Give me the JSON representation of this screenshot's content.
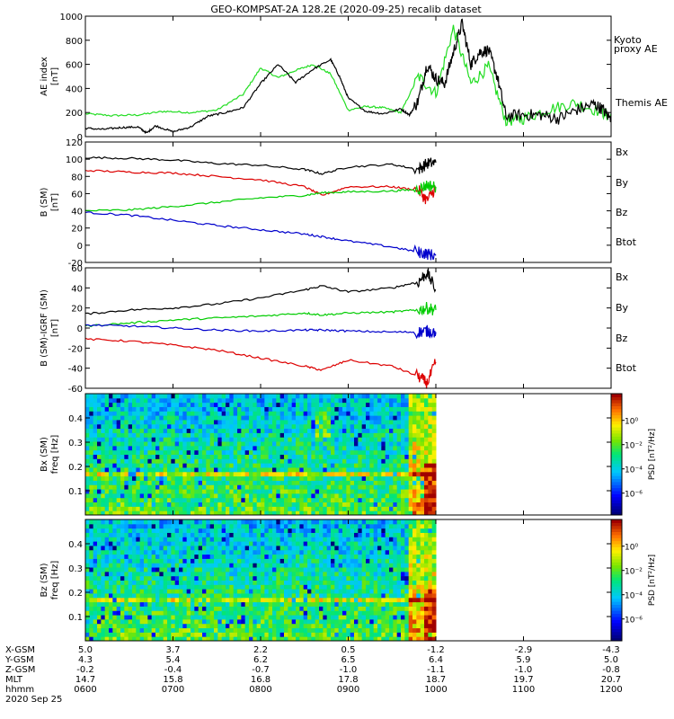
{
  "title": "GEO-KOMPSAT-2A 128.2E (2020-09-25) recalib dataset",
  "colors": {
    "bx": "#0000cc",
    "by": "#00cc00",
    "bz": "#dd0000",
    "btot": "#000000",
    "kyoto": "#22dd22",
    "themis": "#000000"
  },
  "chart_data": [
    {
      "type": "line",
      "name": "ae",
      "ylabel_lines": [
        "AE index",
        "[nT]"
      ],
      "ylim": [
        0,
        1000
      ],
      "yticks": [
        "0",
        "200",
        "400",
        "600",
        "800",
        "1000"
      ],
      "x_hours": [
        6,
        12
      ],
      "legend": [
        {
          "text": "Kyoto",
          "color": "#22dd22"
        },
        {
          "text": "proxy AE",
          "color": "#22dd22"
        },
        {
          "text": "Themis AE",
          "color": "#000000"
        }
      ],
      "series": [
        {
          "name": "Kyoto proxy AE",
          "color": "#22dd22",
          "x": [
            6.0,
            6.3,
            6.6,
            6.9,
            7.2,
            7.5,
            7.8,
            8.0,
            8.2,
            8.4,
            8.6,
            8.8,
            9.0,
            9.2,
            9.4,
            9.6,
            9.8,
            10.0,
            10.2,
            10.4,
            10.6,
            10.8,
            11.0,
            11.3,
            11.6,
            11.9,
            12.0
          ],
          "y": [
            190,
            175,
            180,
            210,
            200,
            220,
            350,
            570,
            490,
            550,
            600,
            520,
            220,
            250,
            240,
            200,
            500,
            360,
            900,
            440,
            580,
            130,
            150,
            230,
            280,
            200,
            160
          ]
        },
        {
          "name": "Themis AE",
          "color": "#000000",
          "x": [
            6.0,
            6.2,
            6.4,
            6.6,
            6.7,
            6.8,
            7.0,
            7.2,
            7.4,
            7.6,
            7.8,
            8.0,
            8.2,
            8.4,
            8.6,
            8.8,
            8.9,
            9.0,
            9.2,
            9.4,
            9.6,
            9.7,
            9.8,
            9.9,
            10.0,
            10.1,
            10.2,
            10.3,
            10.4,
            10.5,
            10.6,
            10.7,
            10.8,
            11.0,
            11.2,
            11.4,
            11.6,
            11.8,
            11.9,
            12.0
          ],
          "y": [
            70,
            60,
            75,
            80,
            30,
            90,
            40,
            80,
            170,
            200,
            240,
            440,
            600,
            450,
            560,
            640,
            500,
            320,
            210,
            190,
            230,
            180,
            300,
            600,
            480,
            440,
            700,
            940,
            600,
            700,
            720,
            500,
            170,
            180,
            180,
            150,
            220,
            270,
            230,
            140
          ]
        }
      ]
    },
    {
      "type": "line",
      "name": "b-sm",
      "ylabel_lines": [
        "B (SM)",
        "[nT]"
      ],
      "ylim": [
        -20,
        120
      ],
      "yticks": [
        "-20",
        "0",
        "20",
        "40",
        "60",
        "80",
        "100",
        "120"
      ],
      "x_hours": [
        6,
        12
      ],
      "legend": [
        {
          "text": "Bx",
          "color": "#0000cc"
        },
        {
          "text": "By",
          "color": "#00cc00"
        },
        {
          "text": "Bz",
          "color": "#dd0000"
        },
        {
          "text": "Btot",
          "color": "#000000"
        }
      ],
      "series": [
        {
          "name": "Btot",
          "color": "#000000",
          "x": [
            6.0,
            6.5,
            7.0,
            7.5,
            8.0,
            8.5,
            8.7,
            9.0,
            9.5,
            9.8,
            9.9,
            10.0
          ],
          "y": [
            102,
            101,
            99,
            95,
            93,
            88,
            83,
            91,
            94,
            88,
            95,
            96
          ]
        },
        {
          "name": "Bz",
          "color": "#dd0000",
          "x": [
            6.0,
            6.5,
            7.0,
            7.5,
            8.0,
            8.5,
            8.7,
            9.0,
            9.5,
            9.8,
            9.9,
            10.0
          ],
          "y": [
            87,
            85,
            84,
            80,
            76,
            68,
            58,
            68,
            68,
            64,
            52,
            67
          ]
        },
        {
          "name": "By",
          "color": "#00cc00",
          "x": [
            6.0,
            6.5,
            7.0,
            7.5,
            8.0,
            8.5,
            8.7,
            9.0,
            9.5,
            9.8,
            9.9,
            10.0
          ],
          "y": [
            40,
            41,
            45,
            50,
            55,
            58,
            61,
            62,
            63,
            65,
            70,
            68
          ]
        },
        {
          "name": "Bx",
          "color": "#0000cc",
          "x": [
            6.0,
            6.5,
            7.0,
            7.5,
            8.0,
            8.5,
            8.7,
            9.0,
            9.5,
            9.8,
            9.9,
            10.0
          ],
          "y": [
            38,
            35,
            29,
            23,
            18,
            13,
            10,
            5,
            -2,
            -8,
            -10,
            -12
          ]
        }
      ]
    },
    {
      "type": "line",
      "name": "b-minus-igrf",
      "ylabel_lines": [
        "B (SM)-IGRF (SM)",
        "[nT]"
      ],
      "ylim": [
        -60,
        60
      ],
      "yticks": [
        "-60",
        "-40",
        "-20",
        "0",
        "20",
        "40",
        "60"
      ],
      "x_hours": [
        6,
        12
      ],
      "legend": [
        {
          "text": "Bx",
          "color": "#0000cc"
        },
        {
          "text": "By",
          "color": "#00cc00"
        },
        {
          "text": "Bz",
          "color": "#dd0000"
        },
        {
          "text": "Btot",
          "color": "#000000"
        }
      ],
      "series": [
        {
          "name": "Btot",
          "color": "#000000",
          "x": [
            6.0,
            6.5,
            7.0,
            7.5,
            8.0,
            8.5,
            8.7,
            9.0,
            9.5,
            9.8,
            9.9,
            10.0
          ],
          "y": [
            14,
            18,
            20,
            24,
            30,
            38,
            42,
            36,
            40,
            46,
            55,
            38
          ]
        },
        {
          "name": "By",
          "color": "#00cc00",
          "x": [
            6.0,
            6.5,
            7.0,
            7.5,
            8.0,
            8.5,
            8.7,
            9.0,
            9.5,
            9.8,
            9.9,
            10.0
          ],
          "y": [
            2,
            5,
            8,
            10,
            12,
            15,
            13,
            15,
            16,
            18,
            20,
            18
          ]
        },
        {
          "name": "Bx",
          "color": "#0000cc",
          "x": [
            6.0,
            6.5,
            7.0,
            7.5,
            8.0,
            8.5,
            8.7,
            9.0,
            9.5,
            9.8,
            9.9,
            10.0
          ],
          "y": [
            3,
            2,
            0,
            -2,
            -3,
            -2,
            -2,
            -3,
            -4,
            -4,
            -3,
            -4
          ]
        },
        {
          "name": "Bz",
          "color": "#dd0000",
          "x": [
            6.0,
            6.5,
            7.0,
            7.5,
            8.0,
            8.5,
            8.7,
            9.0,
            9.5,
            9.8,
            9.9,
            10.0
          ],
          "y": [
            -11,
            -13,
            -17,
            -22,
            -30,
            -38,
            -42,
            -32,
            -38,
            -48,
            -55,
            -34
          ]
        }
      ]
    },
    {
      "type": "heatmap",
      "name": "bx-spectrogram",
      "ylabel_lines": [
        "Bx (SM)",
        "freq [Hz]"
      ],
      "ylim": [
        0,
        0.5
      ],
      "yticks": [
        "0.1",
        "0.2",
        "0.3",
        "0.4"
      ],
      "ytick_values": [
        0.1,
        0.2,
        0.3,
        0.4
      ],
      "data_end_hour": 10.0,
      "colorbar_label": "PSD [nT²/Hz]",
      "colorbar_ticks": [
        "10⁰",
        "10⁻²",
        "10⁻⁴",
        "10⁻⁶"
      ]
    },
    {
      "type": "heatmap",
      "name": "bz-spectrogram",
      "ylabel_lines": [
        "Bz (SM)",
        "freq [Hz]"
      ],
      "ylim": [
        0,
        0.5
      ],
      "yticks": [
        "0.1",
        "0.2",
        "0.3",
        "0.4"
      ],
      "ytick_values": [
        0.1,
        0.2,
        0.3,
        0.4
      ],
      "data_end_hour": 10.0,
      "colorbar_label": "PSD [nT²/Hz]",
      "colorbar_ticks": [
        "10⁰",
        "10⁻²",
        "10⁻⁴",
        "10⁻⁶"
      ]
    }
  ],
  "ephemeris": {
    "rows": [
      {
        "label": "X-GSM",
        "values": [
          "5.0",
          "3.7",
          "2.2",
          "0.5",
          "-1.2",
          "-2.9",
          "-4.3"
        ]
      },
      {
        "label": "Y-GSM",
        "values": [
          "4.3",
          "5.4",
          "6.2",
          "6.5",
          "6.4",
          "5.9",
          "5.0"
        ]
      },
      {
        "label": "Z-GSM",
        "values": [
          "-0.2",
          "-0.4",
          "-0.7",
          "-1.0",
          "-1.1",
          "-1.0",
          "-0.8"
        ]
      },
      {
        "label": "MLT",
        "values": [
          "14.7",
          "15.8",
          "16.8",
          "17.8",
          "18.7",
          "19.7",
          "20.7"
        ]
      },
      {
        "label": "hhmm",
        "values": [
          "0600",
          "0700",
          "0800",
          "0900",
          "1000",
          "1100",
          "1200"
        ]
      }
    ],
    "date": "2020 Sep 25"
  }
}
